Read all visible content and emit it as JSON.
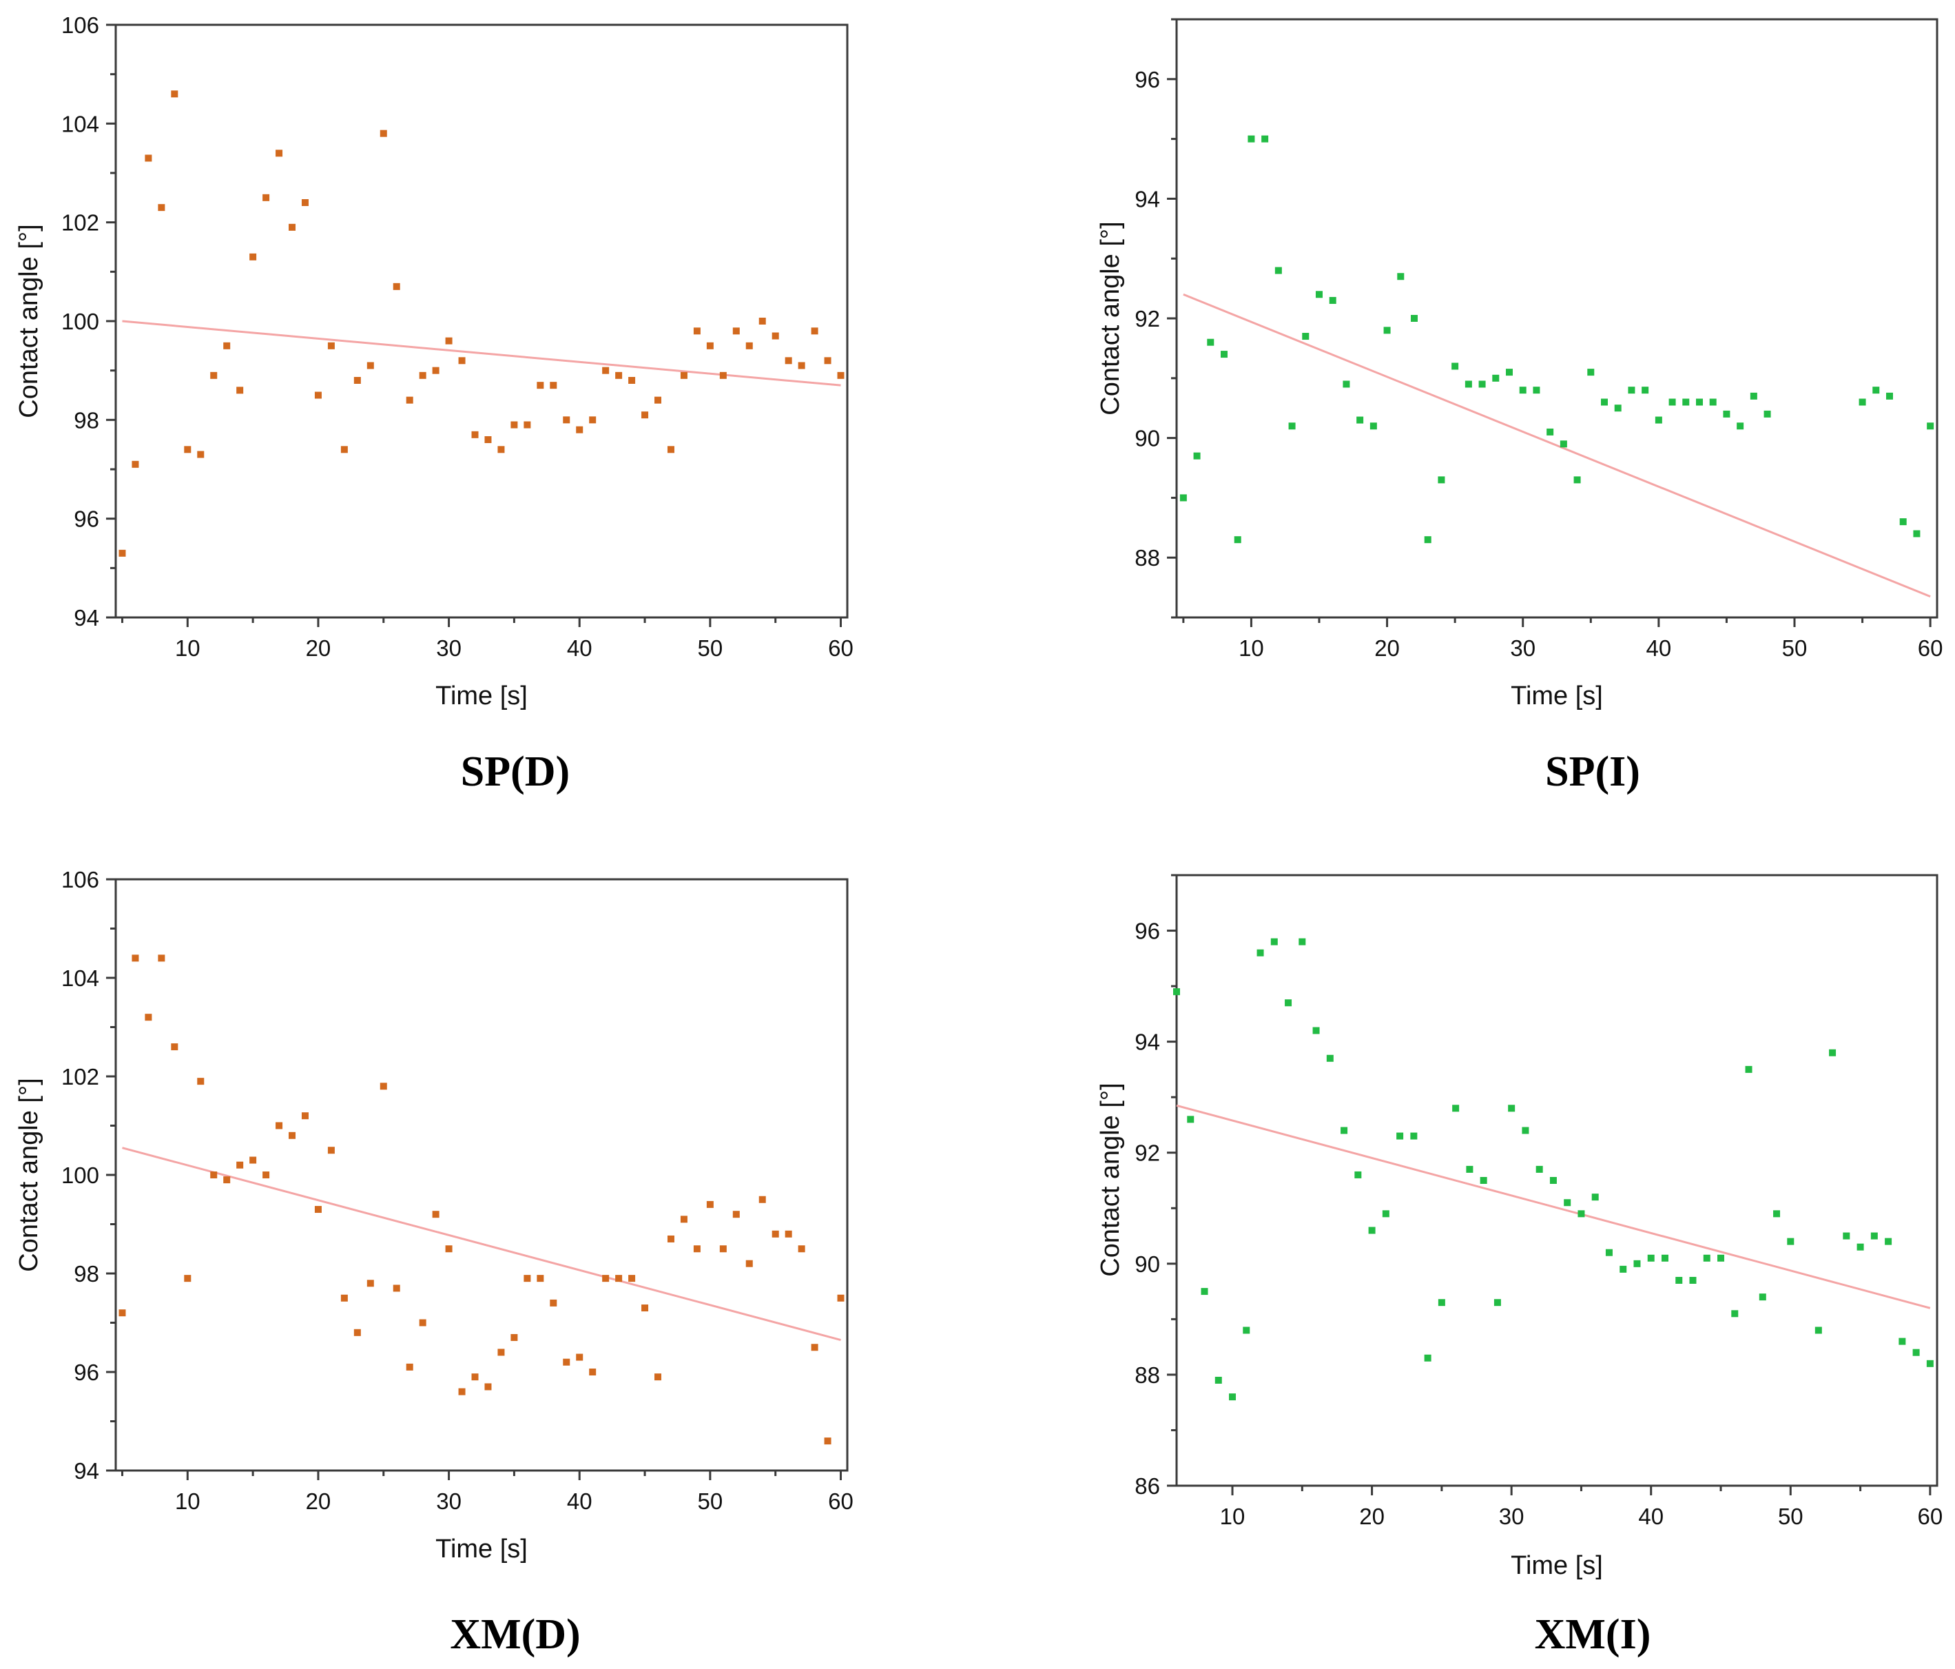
{
  "chart_data": [
    {
      "type": "scatter",
      "panel": "SP(D)",
      "caption": "SP(D)",
      "xlabel": "Time [s]",
      "ylabel": "Contact angle [°]",
      "xlim": [
        4.5,
        60.5
      ],
      "ylim": [
        94,
        106
      ],
      "xticks": [
        10,
        20,
        30,
        40,
        50,
        60
      ],
      "yticks": [
        94,
        96,
        98,
        100,
        102,
        104,
        106
      ],
      "minor_x_step": 5,
      "minor_y_step": 1,
      "point_color": "#d2691e",
      "fit_color": "#f4a5a5",
      "fit_line": {
        "x": [
          5,
          60
        ],
        "y": [
          100.0,
          98.7
        ]
      },
      "series": [
        {
          "name": "measured",
          "x": [
            5,
            6,
            7,
            8,
            9,
            10,
            11,
            12,
            13,
            14,
            15,
            16,
            17,
            18,
            19,
            20,
            21,
            22,
            23,
            24,
            25,
            26,
            27,
            28,
            29,
            30,
            31,
            32,
            33,
            34,
            35,
            36,
            37,
            38,
            39,
            40,
            41,
            42,
            43,
            44,
            45,
            46,
            47,
            48,
            49,
            50,
            51,
            52,
            53,
            54,
            55,
            56,
            57,
            58,
            59,
            60
          ],
          "y": [
            95.3,
            97.1,
            103.3,
            102.3,
            104.6,
            97.4,
            97.3,
            98.9,
            99.5,
            98.6,
            101.3,
            102.5,
            103.4,
            101.9,
            102.4,
            98.5,
            99.5,
            97.4,
            98.8,
            99.1,
            103.8,
            100.7,
            98.4,
            98.9,
            99.0,
            99.6,
            99.2,
            97.7,
            97.6,
            97.4,
            97.9,
            97.9,
            98.7,
            98.7,
            98.0,
            97.8,
            98.0,
            99.0,
            98.9,
            98.8,
            98.1,
            98.4,
            97.4,
            98.9,
            99.8,
            99.5,
            98.9,
            99.8,
            99.5,
            100.0,
            99.7,
            99.2,
            99.1,
            99.8,
            99.2,
            98.9
          ]
        }
      ]
    },
    {
      "type": "scatter",
      "panel": "SP(I)",
      "caption": "SP(I)",
      "xlabel": "Time [s]",
      "ylabel": "Contact angle [°]",
      "xlim": [
        4.5,
        60.5
      ],
      "ylim": [
        87,
        97
      ],
      "xticks": [
        10,
        20,
        30,
        40,
        50,
        60
      ],
      "yticks": [
        88,
        90,
        92,
        94,
        96
      ],
      "minor_x_step": 5,
      "minor_y_step": 1,
      "point_color": "#22bb44",
      "fit_color": "#f4a5a5",
      "fit_line": {
        "x": [
          5,
          60
        ],
        "y": [
          92.4,
          87.35
        ]
      },
      "series": [
        {
          "name": "measured",
          "x": [
            5,
            6,
            7,
            8,
            9,
            10,
            11,
            12,
            13,
            14,
            15,
            16,
            17,
            18,
            19,
            20,
            21,
            22,
            23,
            24,
            25,
            26,
            27,
            28,
            29,
            30,
            31,
            32,
            33,
            34,
            35,
            36,
            37,
            38,
            39,
            40,
            41,
            42,
            43,
            44,
            45,
            46,
            47,
            48,
            55,
            56,
            57,
            58,
            59,
            60
          ],
          "y": [
            89.0,
            89.7,
            91.6,
            91.4,
            88.3,
            95.0,
            95.0,
            92.8,
            90.2,
            91.7,
            92.4,
            92.3,
            90.9,
            90.3,
            90.2,
            91.8,
            92.7,
            92.0,
            88.3,
            89.3,
            91.2,
            90.9,
            90.9,
            91.0,
            91.1,
            90.8,
            90.8,
            90.1,
            89.9,
            89.3,
            91.1,
            90.6,
            90.5,
            90.8,
            90.8,
            90.3,
            90.6,
            90.6,
            90.6,
            90.6,
            90.4,
            90.2,
            90.7,
            90.4,
            90.6,
            90.8,
            90.7,
            88.6,
            88.4,
            90.2
          ]
        }
      ]
    },
    {
      "type": "scatter",
      "panel": "XM(D)",
      "caption": "XM(D)",
      "xlabel": "Time [s]",
      "ylabel": "Contact angle [°]",
      "xlim": [
        4.5,
        60.5
      ],
      "ylim": [
        94,
        106
      ],
      "xticks": [
        10,
        20,
        30,
        40,
        50,
        60
      ],
      "yticks": [
        94,
        96,
        98,
        100,
        102,
        104,
        106
      ],
      "minor_x_step": 5,
      "minor_y_step": 1,
      "point_color": "#d2691e",
      "fit_color": "#f4a5a5",
      "fit_line": {
        "x": [
          5,
          60
        ],
        "y": [
          100.55,
          96.65
        ]
      },
      "series": [
        {
          "name": "measured",
          "x": [
            5,
            6,
            7,
            8,
            9,
            10,
            11,
            12,
            13,
            14,
            15,
            16,
            17,
            18,
            19,
            20,
            21,
            22,
            23,
            24,
            25,
            26,
            27,
            28,
            29,
            30,
            31,
            32,
            33,
            34,
            35,
            36,
            37,
            38,
            39,
            40,
            41,
            42,
            43,
            44,
            45,
            46,
            47,
            48,
            49,
            50,
            51,
            52,
            53,
            54,
            55,
            56,
            57,
            58,
            59,
            60
          ],
          "y": [
            97.2,
            104.4,
            103.2,
            104.4,
            102.6,
            97.9,
            101.9,
            100.0,
            99.9,
            100.2,
            100.3,
            100.0,
            101.0,
            100.8,
            101.2,
            99.3,
            100.5,
            97.5,
            96.8,
            97.8,
            101.8,
            97.7,
            96.1,
            97.0,
            99.2,
            98.5,
            95.6,
            95.9,
            95.7,
            96.4,
            96.7,
            97.9,
            97.9,
            97.4,
            96.2,
            96.3,
            96.0,
            97.9,
            97.9,
            97.9,
            97.3,
            95.9,
            98.7,
            99.1,
            98.5,
            99.4,
            98.5,
            99.2,
            98.2,
            99.5,
            98.8,
            98.8,
            98.5,
            96.5,
            94.6,
            97.5
          ]
        }
      ]
    },
    {
      "type": "scatter",
      "panel": "XM(I)",
      "caption": "XM(I)",
      "xlabel": "Time [s]",
      "ylabel": "Contact angle [°]",
      "xlim": [
        6,
        60.5
      ],
      "ylim": [
        86,
        97
      ],
      "xticks": [
        10,
        20,
        30,
        40,
        50,
        60
      ],
      "yticks": [
        86,
        88,
        90,
        92,
        94,
        96
      ],
      "minor_x_step": 5,
      "minor_y_step": 1,
      "point_color": "#22bb44",
      "fit_color": "#f4a5a5",
      "fit_line": {
        "x": [
          6,
          60
        ],
        "y": [
          92.85,
          89.2
        ]
      },
      "series": [
        {
          "name": "measured",
          "x": [
            6,
            7,
            8,
            9,
            10,
            11,
            12,
            13,
            14,
            15,
            16,
            17,
            18,
            19,
            20,
            21,
            22,
            23,
            24,
            25,
            26,
            27,
            28,
            29,
            30,
            31,
            32,
            33,
            34,
            35,
            36,
            37,
            38,
            39,
            40,
            41,
            42,
            43,
            44,
            45,
            46,
            47,
            48,
            49,
            50,
            52,
            53,
            54,
            55,
            56,
            57,
            58,
            59,
            60
          ],
          "y": [
            94.9,
            92.6,
            89.5,
            87.9,
            87.6,
            88.8,
            95.6,
            95.8,
            94.7,
            95.8,
            94.2,
            93.7,
            92.4,
            91.6,
            90.6,
            90.9,
            92.3,
            92.3,
            88.3,
            89.3,
            92.8,
            91.7,
            91.5,
            89.3,
            92.8,
            92.4,
            91.7,
            91.5,
            91.1,
            90.9,
            91.2,
            90.2,
            89.9,
            90.0,
            90.1,
            90.1,
            89.7,
            89.7,
            90.1,
            90.1,
            89.1,
            93.5,
            89.4,
            90.9,
            90.4,
            88.8,
            93.8,
            90.5,
            90.3,
            90.5,
            90.4,
            88.6,
            88.4,
            88.2
          ]
        }
      ]
    }
  ]
}
